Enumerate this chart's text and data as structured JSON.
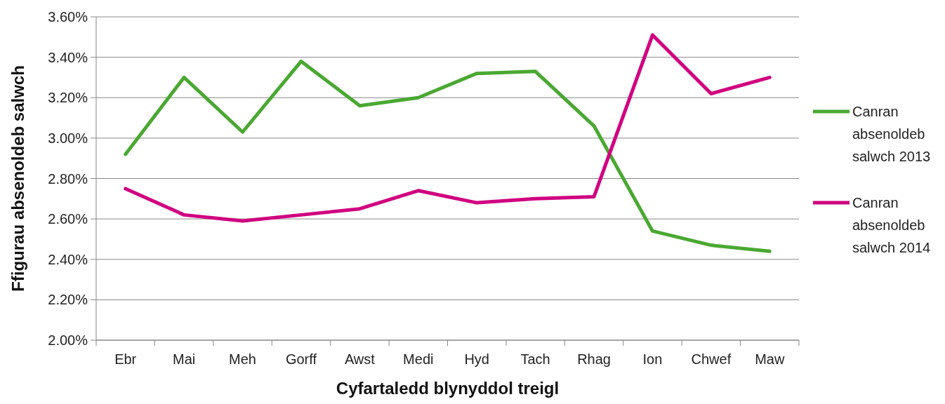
{
  "chart_data": {
    "type": "line",
    "xlabel": "Cyfartaledd blynyddol treigl",
    "ylabel": "Ffigurau absenoldeb salwch",
    "categories": [
      "Ebr",
      "Mai",
      "Meh",
      "Gorff",
      "Awst",
      "Medi",
      "Hyd",
      "Tach",
      "Rhag",
      "Ion",
      "Chwef",
      "Maw"
    ],
    "series": [
      {
        "name": "Canran absenoldeb salwch 2013",
        "color": "#4aa832",
        "values": [
          2.92,
          3.3,
          3.03,
          3.38,
          3.16,
          3.2,
          3.32,
          3.33,
          3.06,
          2.54,
          2.47,
          2.44
        ]
      },
      {
        "name": "Canran absenoldeb salwch 2014",
        "color": "#d0007f",
        "values": [
          2.75,
          2.62,
          2.59,
          2.62,
          2.65,
          2.74,
          2.68,
          2.7,
          2.71,
          3.51,
          3.22,
          3.3
        ]
      }
    ],
    "ylim": [
      2.0,
      3.6
    ],
    "yticks": [
      {
        "value": 2.0,
        "label": "2.00%"
      },
      {
        "value": 2.2,
        "label": "2.20%"
      },
      {
        "value": 2.4,
        "label": "2.40%"
      },
      {
        "value": 2.6,
        "label": "2.60%"
      },
      {
        "value": 2.8,
        "label": "2.80%"
      },
      {
        "value": 3.0,
        "label": "3.00%"
      },
      {
        "value": 3.2,
        "label": "3.20%"
      },
      {
        "value": 3.4,
        "label": "3.40%"
      },
      {
        "value": 3.6,
        "label": "3.60%"
      }
    ],
    "grid": "y",
    "legend": "right",
    "marker": "none",
    "line_style": "solid"
  }
}
